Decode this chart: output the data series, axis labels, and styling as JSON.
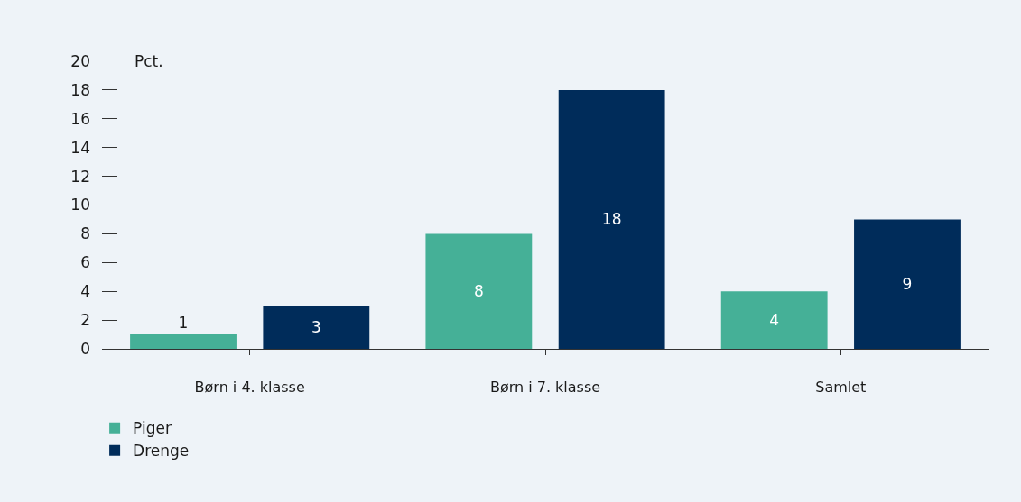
{
  "chart_data": {
    "type": "bar",
    "ylabel": "Pct.",
    "categories": [
      "Børn i 4. klasse",
      "Børn i 7. klasse",
      "Samlet"
    ],
    "series": [
      {
        "name": "Piger",
        "color": "#45b097",
        "values": [
          1,
          8,
          4
        ]
      },
      {
        "name": "Drenge",
        "color": "#002c5a",
        "values": [
          3,
          18,
          9
        ]
      }
    ],
    "ylim": [
      0,
      20
    ],
    "yticks": [
      0,
      2,
      4,
      6,
      8,
      10,
      12,
      14,
      16,
      18,
      20
    ],
    "data_labels": true,
    "grid": false,
    "legend": "bottom left"
  }
}
